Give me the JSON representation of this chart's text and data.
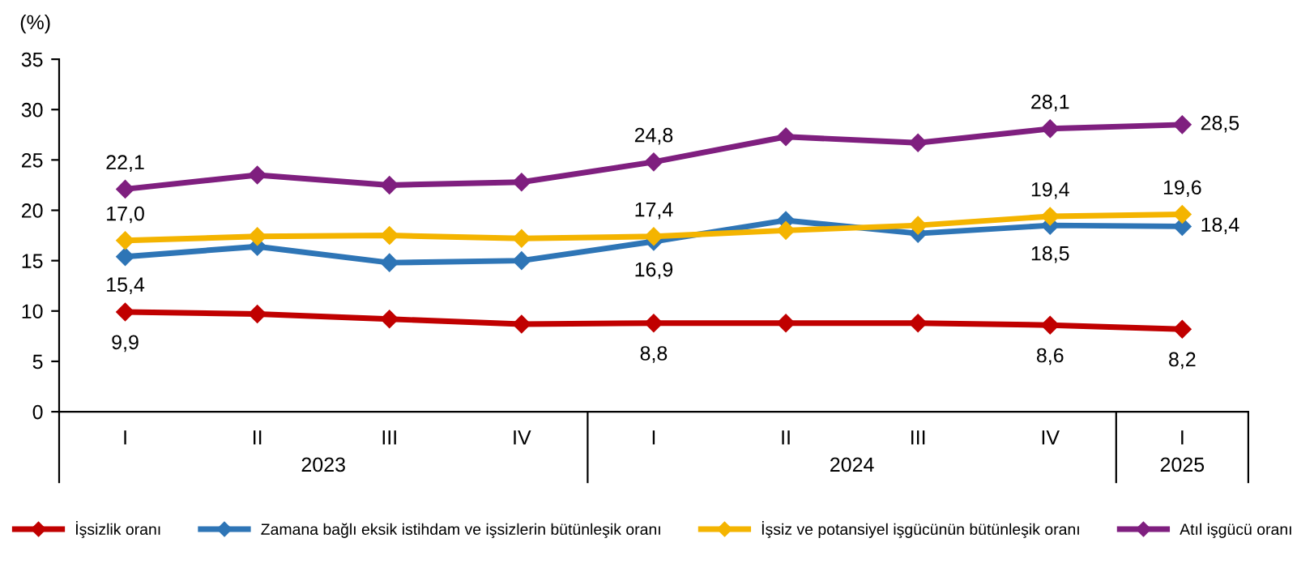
{
  "chart_data": {
    "type": "line",
    "ylabel": "(%)",
    "categories": [
      "I",
      "II",
      "III",
      "IV",
      "I",
      "II",
      "III",
      "IV",
      "I"
    ],
    "annotations": [
      "2023",
      "2024",
      "2025"
    ],
    "ylim": [
      0,
      35
    ],
    "yticks": [
      0,
      5,
      10,
      15,
      20,
      25,
      30,
      35
    ],
    "grid": false,
    "legend": "bottom",
    "marker": "diamond",
    "line_style": "solid",
    "series": [
      {
        "name": "İşsizlik oranı",
        "color": "#c00000",
        "values": [
          9.9,
          9.7,
          9.2,
          8.7,
          8.8,
          8.8,
          8.8,
          8.6,
          8.2
        ],
        "value_labels": [
          "9,9",
          null,
          null,
          null,
          "8,8",
          null,
          null,
          "8,6",
          "8,2"
        ]
      },
      {
        "name": "Zamana bağlı eksik istihdam ve işsizlerin bütünleşik oranı",
        "color": "#2e75b6",
        "values": [
          15.4,
          16.4,
          14.8,
          15.0,
          16.9,
          19.0,
          17.7,
          18.5,
          18.4
        ],
        "value_labels": [
          "15,4",
          null,
          null,
          null,
          "16,9",
          null,
          null,
          "18,5",
          "18,4"
        ]
      },
      {
        "name": "İşsiz ve potansiyel işgücünün bütünleşik oranı",
        "color": "#f4b400",
        "values": [
          17.0,
          17.4,
          17.5,
          17.2,
          17.4,
          18.0,
          18.5,
          19.4,
          19.6
        ],
        "value_labels": [
          "17,0",
          null,
          null,
          null,
          "17,4",
          null,
          null,
          "19,4",
          "19,6"
        ]
      },
      {
        "name": "Atıl işgücü oranı",
        "color": "#7f1f7f",
        "values": [
          22.1,
          23.5,
          22.5,
          22.8,
          24.8,
          27.3,
          26.7,
          28.1,
          28.5
        ],
        "value_labels": [
          "22,1",
          null,
          null,
          null,
          "24,8",
          null,
          null,
          "28,1",
          "28,5"
        ]
      }
    ]
  }
}
